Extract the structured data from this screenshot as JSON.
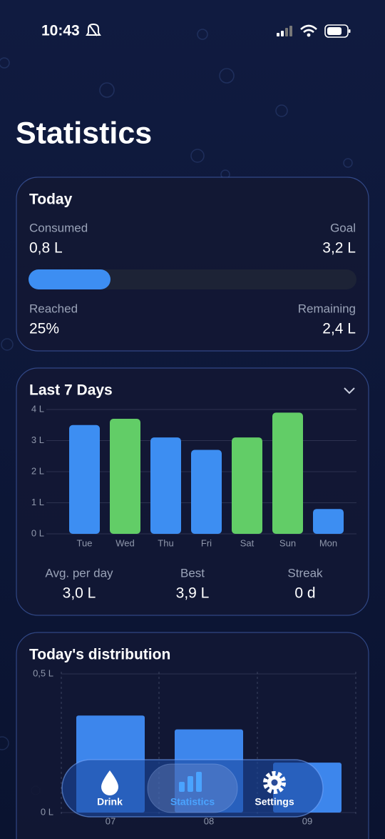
{
  "status_bar": {
    "time": "10:43"
  },
  "header": {
    "title": "Statistics"
  },
  "today": {
    "title": "Today",
    "consumed": {
      "label": "Consumed",
      "value": "0,8 L"
    },
    "goal": {
      "label": "Goal",
      "value": "3,2 L"
    },
    "reached": {
      "label": "Reached",
      "value": 25,
      "value_label": "25%"
    },
    "remaining": {
      "label": "Remaining",
      "value": "2,4 L"
    }
  },
  "chart_data": [
    {
      "type": "bar",
      "title": "Last 7 Days",
      "categories": [
        "Tue",
        "Wed",
        "Thu",
        "Fri",
        "Sat",
        "Sun",
        "Mon"
      ],
      "values": [
        3.5,
        3.7,
        3.1,
        2.7,
        3.1,
        3.9,
        0.8
      ],
      "colors": [
        "#3d8ef2",
        "#62cd67",
        "#3d8ef2",
        "#3d8ef2",
        "#62cd67",
        "#62cd67",
        "#3d8ef2"
      ],
      "ylim": [
        0,
        4
      ],
      "yticks": [
        {
          "value": 0,
          "label": "0 L"
        },
        {
          "value": 1,
          "label": "1 L"
        },
        {
          "value": 2,
          "label": "2 L"
        },
        {
          "value": 3,
          "label": "3 L"
        },
        {
          "value": 4,
          "label": "4 L"
        }
      ],
      "grid": true
    },
    {
      "type": "bar",
      "title": "Today's distribution",
      "categories": [
        "07",
        "08",
        "09"
      ],
      "values": [
        0.35,
        0.3,
        0.18
      ],
      "colors": [
        "#3d86ec",
        "#3d86ec",
        "#3d86ec"
      ],
      "ylim": [
        0,
        0.5
      ],
      "yticks": [
        {
          "value": 0,
          "label": "0 L"
        },
        {
          "value": 0.5,
          "label": "0,5 L"
        }
      ],
      "grid": true
    }
  ],
  "week_stats": [
    {
      "label": "Avg. per day",
      "value": "3,0 L"
    },
    {
      "label": "Best",
      "value": "3,9 L"
    },
    {
      "label": "Streak",
      "value": "0 d"
    }
  ],
  "nav": {
    "items": [
      {
        "label": "Drink",
        "active": false
      },
      {
        "label": "Statistics",
        "active": true
      },
      {
        "label": "Settings",
        "active": false
      }
    ]
  }
}
